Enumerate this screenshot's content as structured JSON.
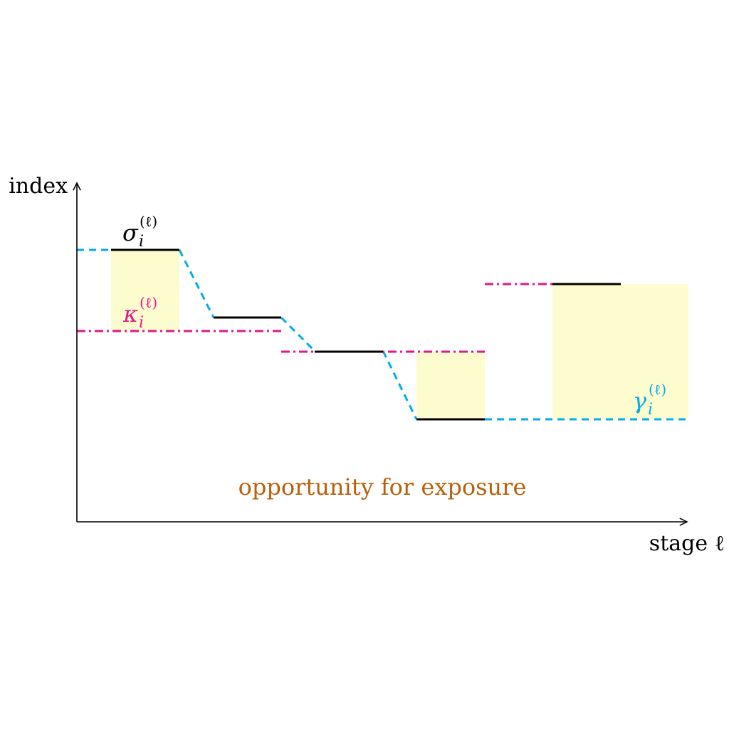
{
  "axes": {
    "y_label": "index",
    "x_label": "stage ℓ"
  },
  "labels": {
    "sigma": {
      "base": "σ",
      "sup": "(ℓ)",
      "sub": "i"
    },
    "kappa": {
      "base": "κ",
      "sup": "(ℓ)",
      "sub": "i"
    },
    "gamma": {
      "base": "γ",
      "sup": "(ℓ)",
      "sub": "i"
    },
    "caption": "opportunity for exposure"
  },
  "colors": {
    "sigma": "#000000",
    "kappa": "#e0188c",
    "gamma": "#00aee8",
    "shade": "#fdfccf",
    "caption": "#b8600a",
    "axis": "#000000"
  }
}
